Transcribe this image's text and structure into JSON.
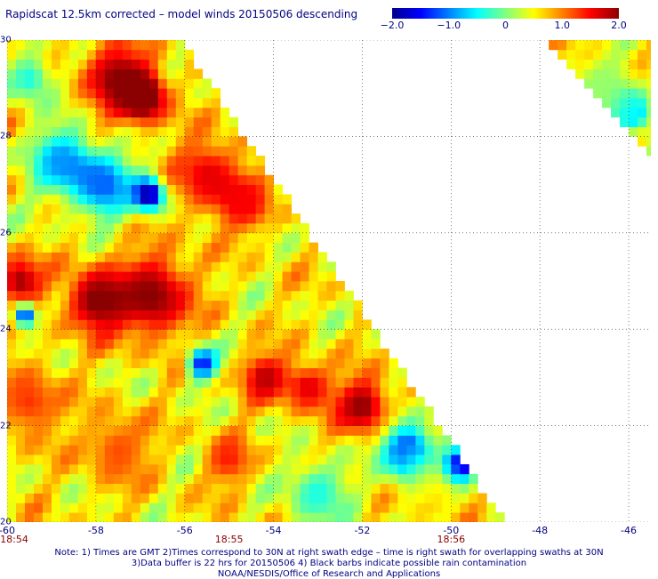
{
  "title": "Rapidscat 12.5km corrected – model winds 20150506 descending",
  "colorbar": {
    "min": -2.0,
    "max": 2.0,
    "labels": [
      {
        "text": "−2.0",
        "value": -2.0
      },
      {
        "text": "−1.0",
        "value": -1.0
      },
      {
        "text": "0",
        "value": 0
      },
      {
        "text": "1.0",
        "value": 1.0
      },
      {
        "text": "2.0",
        "value": 2.0
      }
    ],
    "colors": [
      "#00008b",
      "#0000ff",
      "#0080ff",
      "#00ffff",
      "#80ff80",
      "#ffff00",
      "#ff8000",
      "#ff0000",
      "#8b0000"
    ]
  },
  "chart_data": {
    "type": "heatmap",
    "title": "Rapidscat 12.5km corrected – model winds 20150506 descending",
    "xlim": [
      -60,
      -45.5
    ],
    "ylim": [
      20,
      30
    ],
    "x_ticks": [
      {
        "value": -60,
        "label": "-60"
      },
      {
        "value": -58,
        "label": "-58"
      },
      {
        "value": -56,
        "label": "-56"
      },
      {
        "value": -54,
        "label": "-54"
      },
      {
        "value": -52,
        "label": "-52"
      },
      {
        "value": -50,
        "label": "-50"
      },
      {
        "value": -48,
        "label": "-48"
      },
      {
        "value": -46,
        "label": "-46"
      }
    ],
    "y_ticks": [
      {
        "value": 30,
        "label": "30"
      },
      {
        "value": 28,
        "label": "28"
      },
      {
        "value": 26,
        "label": "26"
      },
      {
        "value": 24,
        "label": "24"
      },
      {
        "value": 22,
        "label": "22"
      },
      {
        "value": 20,
        "label": "20"
      }
    ],
    "grid": true,
    "value_range": [
      -2.0,
      2.0
    ],
    "swath_edges": [
      {
        "lat": 30,
        "lon": -56.1
      },
      {
        "lat": 20,
        "lon": -48.8
      }
    ],
    "regions": [
      {
        "lon": -57.5,
        "lat": 29.2,
        "value": 2.0,
        "radius": 0.9
      },
      {
        "lon": -56.9,
        "lat": 28.8,
        "value": 2.0,
        "radius": 0.6
      },
      {
        "lon": -55.5,
        "lat": 27.2,
        "value": 1.6,
        "radius": 0.9
      },
      {
        "lon": -54.6,
        "lat": 26.6,
        "value": 1.5,
        "radius": 0.7
      },
      {
        "lon": -58.8,
        "lat": 27.5,
        "value": -0.9,
        "radius": 0.8
      },
      {
        "lon": -57.8,
        "lat": 27.0,
        "value": -1.1,
        "radius": 0.8
      },
      {
        "lon": -56.8,
        "lat": 26.8,
        "value": -2.0,
        "radius": 0.4
      },
      {
        "lon": -59.5,
        "lat": 29.2,
        "value": -0.4,
        "radius": 0.6
      },
      {
        "lon": -56.7,
        "lat": 24.7,
        "value": 2.0,
        "radius": 1.0
      },
      {
        "lon": -58.0,
        "lat": 24.6,
        "value": 2.0,
        "radius": 0.8
      },
      {
        "lon": -59.7,
        "lat": 25.0,
        "value": 1.9,
        "radius": 0.6
      },
      {
        "lon": -59.6,
        "lat": 24.3,
        "value": -1.5,
        "radius": 0.3
      },
      {
        "lon": -55.6,
        "lat": 23.3,
        "value": -1.5,
        "radius": 0.4
      },
      {
        "lon": -54.2,
        "lat": 23.0,
        "value": 1.8,
        "radius": 0.6
      },
      {
        "lon": -52.0,
        "lat": 22.4,
        "value": 2.0,
        "radius": 0.7
      },
      {
        "lon": -53.2,
        "lat": 22.8,
        "value": 1.6,
        "radius": 0.6
      },
      {
        "lon": -51.0,
        "lat": 21.5,
        "value": -1.3,
        "radius": 0.7
      },
      {
        "lon": -49.8,
        "lat": 21.2,
        "value": -2.0,
        "radius": 0.4
      },
      {
        "lon": -59.5,
        "lat": 22.5,
        "value": 1.3,
        "radius": 0.9
      },
      {
        "lon": -57.5,
        "lat": 21.5,
        "value": 1.2,
        "radius": 0.9
      },
      {
        "lon": -55.0,
        "lat": 21.3,
        "value": 1.4,
        "radius": 0.6
      },
      {
        "lon": -53.0,
        "lat": 20.6,
        "value": -0.4,
        "radius": 0.8
      },
      {
        "lon": -50.5,
        "lat": 20.8,
        "value": 0.6,
        "radius": 0.8
      },
      {
        "lon": -46.5,
        "lat": 29.0,
        "value": 0.1,
        "radius": 0.9
      },
      {
        "lon": -45.9,
        "lat": 28.5,
        "value": -0.7,
        "radius": 0.5
      }
    ]
  },
  "time_labels": [
    {
      "lon": -60,
      "text": "18:54"
    },
    {
      "lon": -55,
      "text": "18:55"
    },
    {
      "lon": -50,
      "text": "18:56"
    }
  ],
  "notes": [
    "Note: 1) Times are GMT 2)Times correspond to 30N at right swath edge – time is right swath for overlapping swaths at 30N",
    "3)Data buffer is 22 hrs for 20150506 4) Black barbs indicate possible rain contamination",
    "NOAA/NESDIS/Office of Research and Applications"
  ]
}
